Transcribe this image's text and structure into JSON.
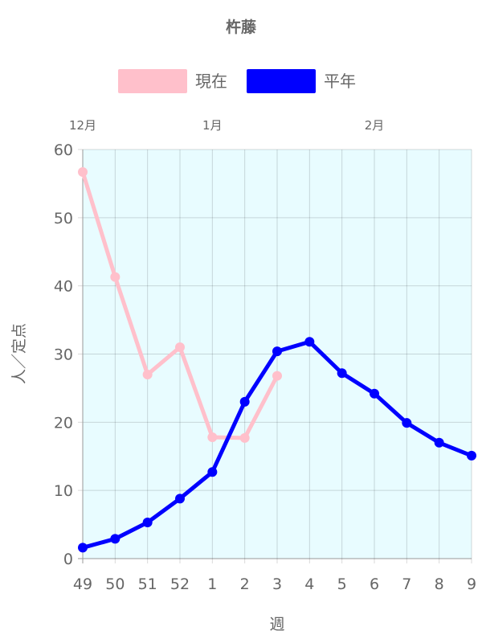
{
  "chart_data": {
    "type": "line",
    "title": "杵藤",
    "xlabel": "週",
    "ylabel": "人／定点",
    "ylim": [
      0,
      60
    ],
    "yticks": [
      0,
      10,
      20,
      30,
      40,
      50,
      60
    ],
    "categories": [
      "49",
      "50",
      "51",
      "52",
      "1",
      "2",
      "3",
      "4",
      "5",
      "6",
      "7",
      "8",
      "9"
    ],
    "month_labels": [
      {
        "label": "12月",
        "category": "49"
      },
      {
        "label": "1月",
        "category": "1"
      },
      {
        "label": "2月",
        "category": "6"
      }
    ],
    "grid": true,
    "legend": "top",
    "plot_background": "#e8fcff",
    "series": [
      {
        "name": "現在",
        "color": "#ffc0cb",
        "values": [
          56.7,
          41.3,
          27.0,
          31.0,
          17.8,
          17.7,
          26.8,
          null,
          null,
          null,
          null,
          null,
          null
        ]
      },
      {
        "name": "平年",
        "color": "#0000ff",
        "values": [
          1.6,
          2.9,
          5.3,
          8.8,
          12.7,
          23.0,
          30.4,
          31.8,
          27.2,
          24.2,
          19.9,
          17.0,
          15.1
        ]
      }
    ]
  }
}
